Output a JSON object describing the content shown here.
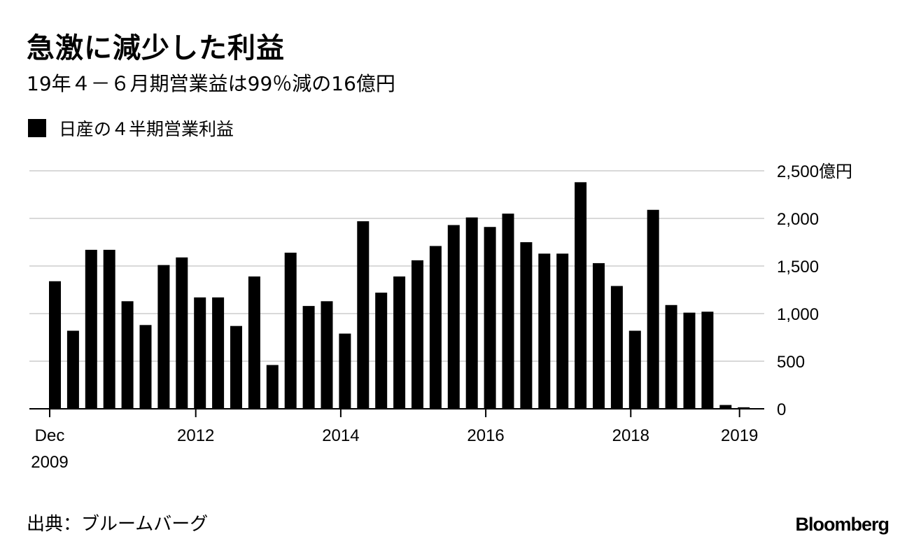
{
  "title": "急激に減少した利益",
  "subtitle": "19年４－６月期営業益は99％減の16億円",
  "source": "出典：ブルームバーグ",
  "logo": "Bloomberg",
  "chart_data": {
    "type": "bar",
    "legend": [
      "日産の４半期営業利益"
    ],
    "ylabel": "",
    "ylim": [
      0,
      2500
    ],
    "yticks": [
      0,
      500,
      1000,
      1500,
      2000,
      2500
    ],
    "ytick_labels": [
      "0",
      "500",
      "1,000",
      "1,500",
      "2,000",
      "2,500億円"
    ],
    "grid": true,
    "legend_position": "top-left",
    "x_labels": [
      {
        "text": "Dec",
        "index": 0
      },
      {
        "text": "2009",
        "index": 0
      },
      {
        "text": "2012",
        "index": 8
      },
      {
        "text": "2014",
        "index": 16
      },
      {
        "text": "2016",
        "index": 24
      },
      {
        "text": "2018",
        "index": 32
      },
      {
        "text": "2019",
        "index": 38
      }
    ],
    "categories": [
      "2009-Q4",
      "2010-Q1",
      "2010-Q2",
      "2010-Q3",
      "2010-Q4",
      "2011-Q1",
      "2011-Q2",
      "2011-Q3",
      "2011-Q4",
      "2012-Q1",
      "2012-Q2",
      "2012-Q3",
      "2012-Q4",
      "2013-Q1",
      "2013-Q2",
      "2013-Q3",
      "2013-Q4",
      "2014-Q1",
      "2014-Q2",
      "2014-Q3",
      "2014-Q4",
      "2015-Q1",
      "2015-Q2",
      "2015-Q3",
      "2015-Q4",
      "2016-Q1",
      "2016-Q2",
      "2016-Q3",
      "2016-Q4",
      "2017-Q1",
      "2017-Q2",
      "2017-Q3",
      "2017-Q4",
      "2018-Q1",
      "2018-Q2",
      "2018-Q3",
      "2018-Q4",
      "2019-Q1",
      "2019-Q2"
    ],
    "series": [
      {
        "name": "日産の４半期営業利益",
        "values": [
          1340,
          820,
          1670,
          1670,
          1130,
          880,
          1510,
          1590,
          1170,
          1170,
          870,
          1390,
          460,
          1640,
          1080,
          1130,
          790,
          1970,
          1220,
          1390,
          1560,
          1710,
          1930,
          2010,
          1910,
          2050,
          1750,
          1630,
          1630,
          2380,
          1530,
          1290,
          820,
          2090,
          1090,
          1010,
          1020,
          40,
          16
        ]
      }
    ]
  }
}
